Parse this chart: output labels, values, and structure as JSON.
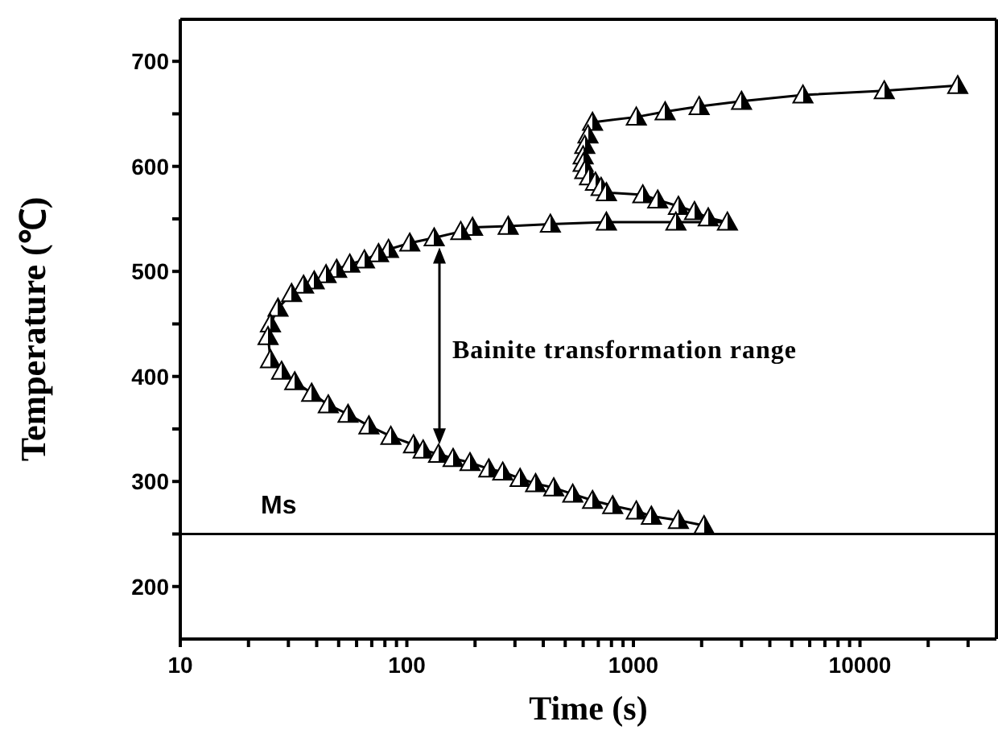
{
  "chart_data": {
    "type": "line",
    "xlabel": "Time (s)",
    "ylabel": "Temperature (℃)",
    "log": "x",
    "grid": false,
    "legend": false,
    "marker": "triangle",
    "line_style": "solid",
    "xlim": [
      10,
      40000
    ],
    "ylim": [
      150,
      740
    ],
    "xticks": [
      10,
      {
        "value": 20,
        "label": null
      },
      {
        "value": 30,
        "label": null
      },
      {
        "value": 40,
        "label": null
      },
      {
        "value": 50,
        "label": null
      },
      {
        "value": 60,
        "label": null
      },
      {
        "value": 70,
        "label": null
      },
      {
        "value": 80,
        "label": null
      },
      {
        "value": 90,
        "label": null
      },
      100,
      {
        "value": 200,
        "label": null
      },
      {
        "value": 300,
        "label": null
      },
      {
        "value": 400,
        "label": null
      },
      {
        "value": 500,
        "label": null
      },
      {
        "value": 600,
        "label": null
      },
      {
        "value": 700,
        "label": null
      },
      {
        "value": 800,
        "label": null
      },
      {
        "value": 900,
        "label": null
      },
      1000,
      {
        "value": 2000,
        "label": null
      },
      {
        "value": 3000,
        "label": null
      },
      {
        "value": 4000,
        "label": null
      },
      {
        "value": 5000,
        "label": null
      },
      {
        "value": 6000,
        "label": null
      },
      {
        "value": 7000,
        "label": null
      },
      {
        "value": 8000,
        "label": null
      },
      {
        "value": 9000,
        "label": null
      },
      10000,
      {
        "value": 20000,
        "label": null
      },
      {
        "value": 30000,
        "label": null
      }
    ],
    "yticks": [
      200,
      {
        "value": 250,
        "label": null
      },
      300,
      {
        "value": 350,
        "label": null
      },
      400,
      {
        "value": 450,
        "label": null
      },
      500,
      {
        "value": 550,
        "label": null
      },
      600,
      {
        "value": 650,
        "label": null
      },
      700
    ],
    "series": [
      {
        "color": "#000000",
        "x": [
          27000,
          12800,
          5600,
          3000,
          1950,
          1380,
          1030,
          660,
          630,
          610,
          600,
          600,
          610,
          640,
          680,
          720,
          760,
          1100,
          1280,
          1580,
          1860,
          2140,
          2600,
          1540,
          760,
          430,
          280,
          195,
          173,
          132,
          103,
          83,
          75,
          65,
          56,
          49,
          44,
          39,
          35,
          31,
          27,
          25,
          24.4,
          25,
          28,
          32,
          38,
          45,
          55,
          68,
          85,
          107,
          118,
          138,
          160,
          190,
          230,
          265,
          316,
          370,
          445,
          540,
          660,
          810,
          1030,
          1200,
          1580,
          2050
        ],
        "values": [
          677,
          672,
          668,
          662,
          657,
          652,
          647,
          642,
          630,
          620,
          610,
          603,
          596,
          590,
          585,
          580,
          575,
          573,
          568,
          562,
          557,
          551,
          547,
          547,
          547,
          545,
          543,
          542,
          538,
          532,
          527,
          521,
          517,
          511,
          507,
          502,
          497,
          491,
          487,
          479,
          465,
          450,
          438,
          416,
          405,
          395,
          384,
          373,
          364,
          353,
          343,
          335,
          330,
          326,
          322,
          318,
          312,
          309,
          303,
          298,
          294,
          288,
          282,
          277,
          272,
          267,
          263,
          258
        ]
      }
    ],
    "ref_lines": [
      {
        "axis": "y",
        "value": 250,
        "label": "Ms",
        "color": "#000000"
      }
    ],
    "annotations": [
      "Bainite transformation range"
    ]
  }
}
